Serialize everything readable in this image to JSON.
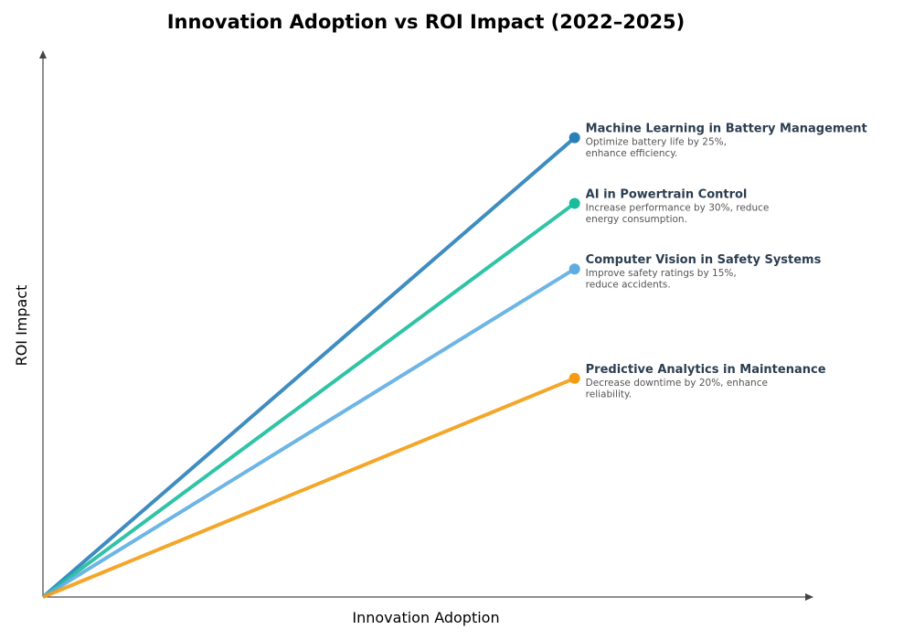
{
  "chart_data": {
    "type": "line",
    "title": "Innovation Adoption vs ROI Impact (2022–2025)",
    "xlabel": "Innovation Adoption",
    "ylabel": "ROI Impact",
    "xlim": [
      0,
      1
    ],
    "ylim": [
      0,
      1
    ],
    "grid": false,
    "series": [
      {
        "name": "Machine Learning in Battery Management",
        "description": [
          "Optimize battery life by 25%,",
          "enhance efficiency."
        ],
        "color": "#2980b9",
        "points": [
          [
            0,
            0
          ],
          [
            0.69,
            0.84
          ]
        ]
      },
      {
        "name": "AI in Powertrain Control",
        "description": [
          "Increase performance by 30%, reduce",
          "energy consumption."
        ],
        "color": "#1abc9c",
        "points": [
          [
            0,
            0
          ],
          [
            0.69,
            0.72
          ]
        ]
      },
      {
        "name": "Computer Vision in Safety Systems",
        "description": [
          "Improve safety ratings by 15%,",
          "reduce accidents."
        ],
        "color": "#5dade2",
        "points": [
          [
            0,
            0
          ],
          [
            0.69,
            0.6
          ]
        ]
      },
      {
        "name": "Predictive Analytics in Maintenance",
        "description": [
          "Decrease downtime by 20%, enhance",
          "reliability."
        ],
        "color": "#f39c12",
        "points": [
          [
            0,
            0
          ],
          [
            0.69,
            0.4
          ]
        ]
      }
    ]
  }
}
